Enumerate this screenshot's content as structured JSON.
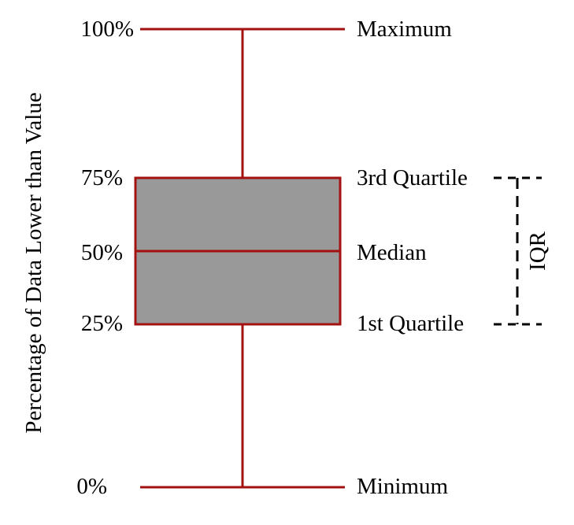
{
  "diagram": {
    "ylabel": "Percentage of Data Lower than Value",
    "ticks": [
      "100%",
      "75%",
      "50%",
      "25%",
      "0%"
    ],
    "labels": {
      "maximum": "Maximum",
      "q3": "3rd Quartile",
      "median": "Median",
      "q1": "1st Quartile",
      "minimum": "Minimum"
    },
    "iqr_label": "IQR"
  },
  "colors": {
    "line": "#a31111",
    "box_fill": "#999999",
    "dash": "#000000"
  }
}
